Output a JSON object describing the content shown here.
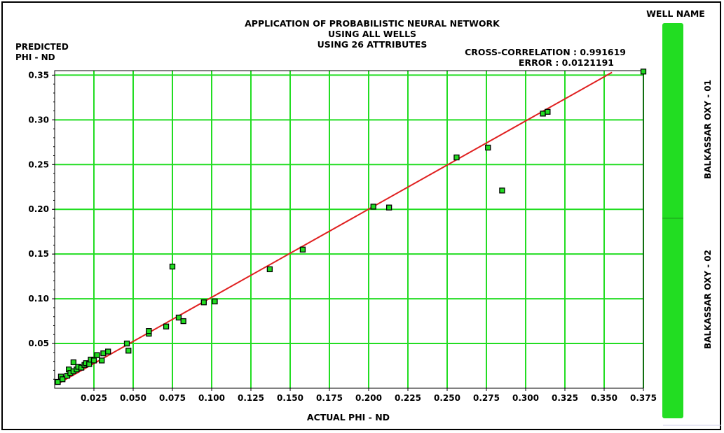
{
  "chart_data": {
    "type": "scatter",
    "title": "APPLICATION OF PROBABILISTIC NEURAL NETWORK",
    "subtitle_lines": [
      "USING ALL WELLS",
      "USING 26 ATTRIBUTES"
    ],
    "xlabel": "ACTUAL PHI - ND",
    "ylabel_lines": [
      "PREDICTED",
      "PHI - ND"
    ],
    "annotations": [
      "CROSS-CORRELATION : 0.991619",
      "ERROR : 0.0121191"
    ],
    "xlim": [
      0.0,
      0.375
    ],
    "ylim": [
      0.0,
      0.355
    ],
    "x_ticks": [
      0.025,
      0.05,
      0.075,
      0.1,
      0.125,
      0.15,
      0.175,
      0.2,
      0.225,
      0.25,
      0.275,
      0.3,
      0.325,
      0.35,
      0.375
    ],
    "x_tick_labels": [
      "0.025",
      "0.050",
      "0.075",
      "0.100",
      "0.125",
      "0.150",
      "0.175",
      "0.200",
      "0.225",
      "0.250",
      "0.275",
      "0.300",
      "0.325",
      "0.350",
      "0.375"
    ],
    "y_ticks": [
      0.05,
      0.1,
      0.15,
      0.2,
      0.25,
      0.3,
      0.35
    ],
    "y_tick_labels": [
      "0.05",
      "0.10",
      "0.15",
      "0.20",
      "0.25",
      "0.30",
      "0.35"
    ],
    "grid": true,
    "grid_color": "#22dd22",
    "line_color": "#e02020",
    "marker_color": "#22dd22",
    "fit_line": {
      "x": [
        0.002,
        0.355
      ],
      "y": [
        0.005,
        0.353
      ]
    },
    "points": [
      {
        "x": 0.002,
        "y": 0.007
      },
      {
        "x": 0.004,
        "y": 0.013
      },
      {
        "x": 0.005,
        "y": 0.01
      },
      {
        "x": 0.008,
        "y": 0.014
      },
      {
        "x": 0.009,
        "y": 0.021
      },
      {
        "x": 0.01,
        "y": 0.017
      },
      {
        "x": 0.012,
        "y": 0.019
      },
      {
        "x": 0.012,
        "y": 0.029
      },
      {
        "x": 0.014,
        "y": 0.021
      },
      {
        "x": 0.015,
        "y": 0.024
      },
      {
        "x": 0.017,
        "y": 0.023
      },
      {
        "x": 0.019,
        "y": 0.026
      },
      {
        "x": 0.02,
        "y": 0.028
      },
      {
        "x": 0.022,
        "y": 0.027
      },
      {
        "x": 0.023,
        "y": 0.032
      },
      {
        "x": 0.025,
        "y": 0.031
      },
      {
        "x": 0.027,
        "y": 0.037
      },
      {
        "x": 0.03,
        "y": 0.031
      },
      {
        "x": 0.031,
        "y": 0.039
      },
      {
        "x": 0.034,
        "y": 0.041
      },
      {
        "x": 0.046,
        "y": 0.05
      },
      {
        "x": 0.047,
        "y": 0.042
      },
      {
        "x": 0.06,
        "y": 0.061
      },
      {
        "x": 0.06,
        "y": 0.064
      },
      {
        "x": 0.071,
        "y": 0.069
      },
      {
        "x": 0.075,
        "y": 0.136
      },
      {
        "x": 0.079,
        "y": 0.079
      },
      {
        "x": 0.082,
        "y": 0.075
      },
      {
        "x": 0.095,
        "y": 0.096
      },
      {
        "x": 0.102,
        "y": 0.097
      },
      {
        "x": 0.137,
        "y": 0.133
      },
      {
        "x": 0.158,
        "y": 0.155
      },
      {
        "x": 0.203,
        "y": 0.203
      },
      {
        "x": 0.213,
        "y": 0.202
      },
      {
        "x": 0.256,
        "y": 0.258
      },
      {
        "x": 0.276,
        "y": 0.269
      },
      {
        "x": 0.285,
        "y": 0.221
      },
      {
        "x": 0.311,
        "y": 0.307
      },
      {
        "x": 0.314,
        "y": 0.309
      },
      {
        "x": 0.375,
        "y": 0.354
      }
    ]
  },
  "legend": {
    "title": "WELL NAME",
    "items": [
      "BALKASSAR OXY - 01",
      "BALKASSAR OXY - 02"
    ],
    "bar_color": "#22dd22"
  }
}
